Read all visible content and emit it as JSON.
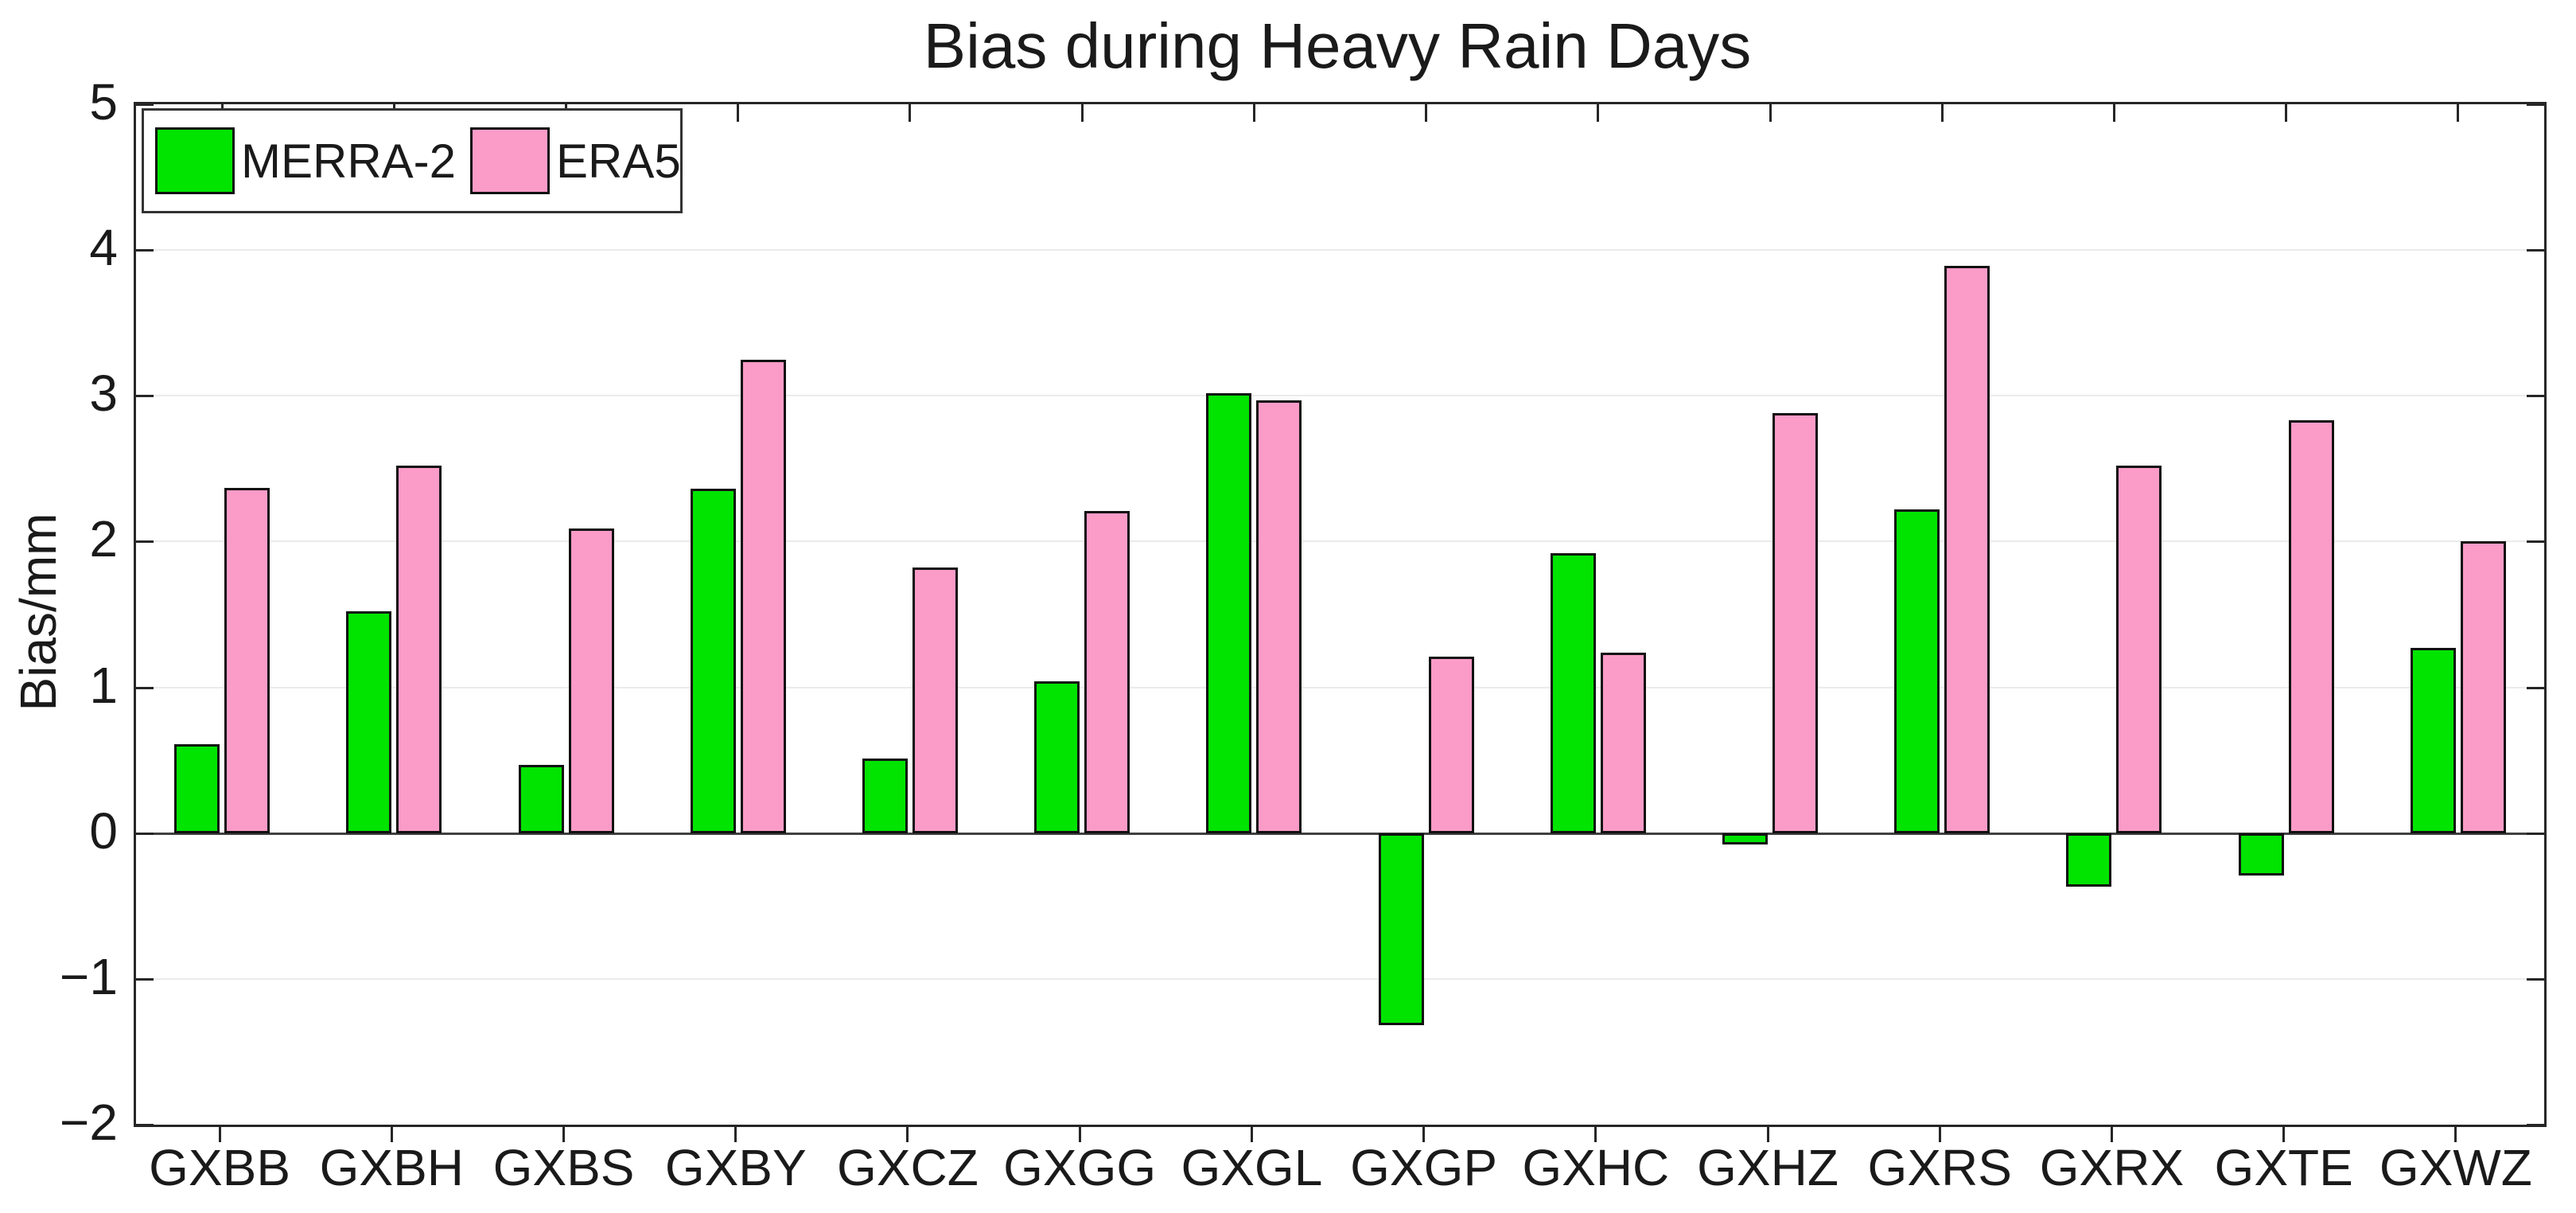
{
  "title": "Bias during Heavy Rain Days",
  "ylabel": "Bias/mm",
  "colors": {
    "merra2": "#00E400",
    "era5": "#FB9BC8",
    "axis": "#262626",
    "grid": "#EBEBEB",
    "zero_line": "#404040",
    "bar_edge": "#111111"
  },
  "legend": [
    {
      "label": "MERRA-2",
      "color_key": "merra2"
    },
    {
      "label": "ERA5",
      "color_key": "era5"
    }
  ],
  "chart_data": {
    "type": "bar",
    "title": "Bias during Heavy Rain Days",
    "xlabel": "",
    "ylabel": "Bias/mm",
    "ylim": [
      -2,
      5
    ],
    "ytick_interval": 1,
    "grid": true,
    "legend_position": "upper-left-inside",
    "categories": [
      "GXBB",
      "GXBH",
      "GXBS",
      "GXBY",
      "GXCZ",
      "GXGG",
      "GXGL",
      "GXGP",
      "GXHC",
      "GXHZ",
      "GXRS",
      "GXRX",
      "GXTE",
      "GXWZ"
    ],
    "series": [
      {
        "name": "MERRA-2",
        "color": "#00E400",
        "values": [
          0.61,
          1.52,
          0.47,
          2.36,
          0.51,
          1.04,
          3.02,
          -1.32,
          1.92,
          -0.08,
          2.22,
          -0.37,
          -0.29,
          1.27
        ]
      },
      {
        "name": "ERA5",
        "color": "#FB9BC8",
        "values": [
          2.37,
          2.52,
          2.09,
          3.25,
          1.82,
          2.21,
          2.97,
          1.21,
          1.24,
          2.88,
          3.89,
          2.52,
          2.83,
          2.0
        ]
      }
    ]
  }
}
